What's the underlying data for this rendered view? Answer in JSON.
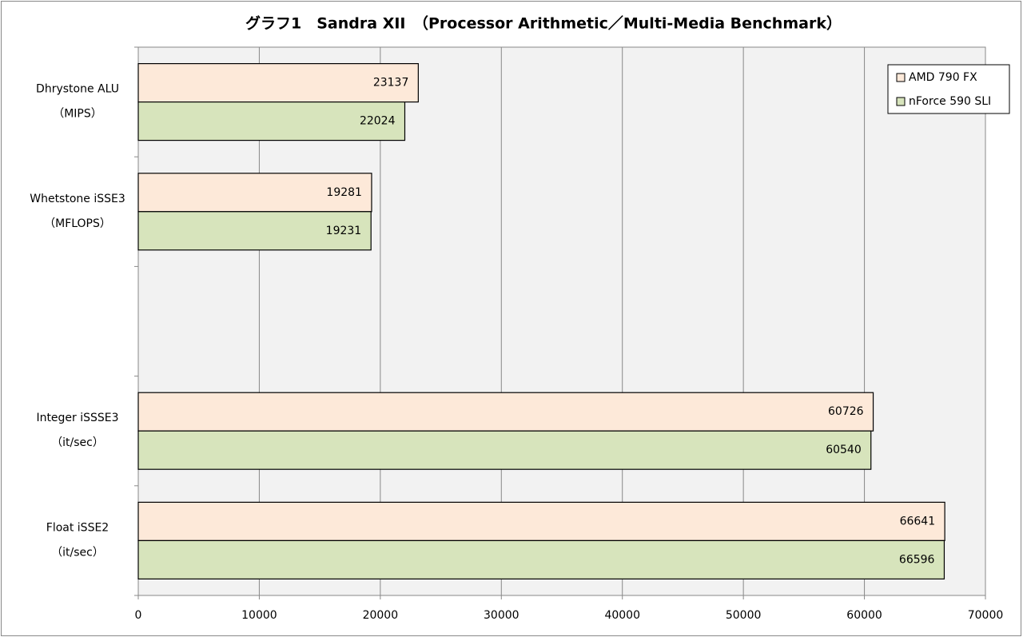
{
  "chart_data": {
    "type": "bar",
    "orientation": "horizontal",
    "title": "グラフ1　Sandra XII　（Processor Arithmetic／Multi-Media Benchmark）",
    "categories": [
      [
        "Dhrystone ALU",
        "（MIPS）"
      ],
      [
        "Whetstone iSSE3",
        "（MFLOPS）"
      ],
      null,
      [
        "Integer iSSSE3",
        "（it/sec）"
      ],
      [
        "Float iSSE2",
        "（it/sec）"
      ]
    ],
    "series": [
      {
        "name": "AMD 790 FX",
        "color": "#fde9d9",
        "values": [
          23137,
          19281,
          null,
          60726,
          66641
        ]
      },
      {
        "name": "nForce 590 SLI",
        "color": "#d7e4bc",
        "values": [
          22024,
          19231,
          null,
          60540,
          66596
        ]
      }
    ],
    "xlim": [
      0,
      70000
    ],
    "xticks": [
      0,
      10000,
      20000,
      30000,
      40000,
      50000,
      60000,
      70000
    ],
    "grid": true,
    "legend": "top-right"
  }
}
